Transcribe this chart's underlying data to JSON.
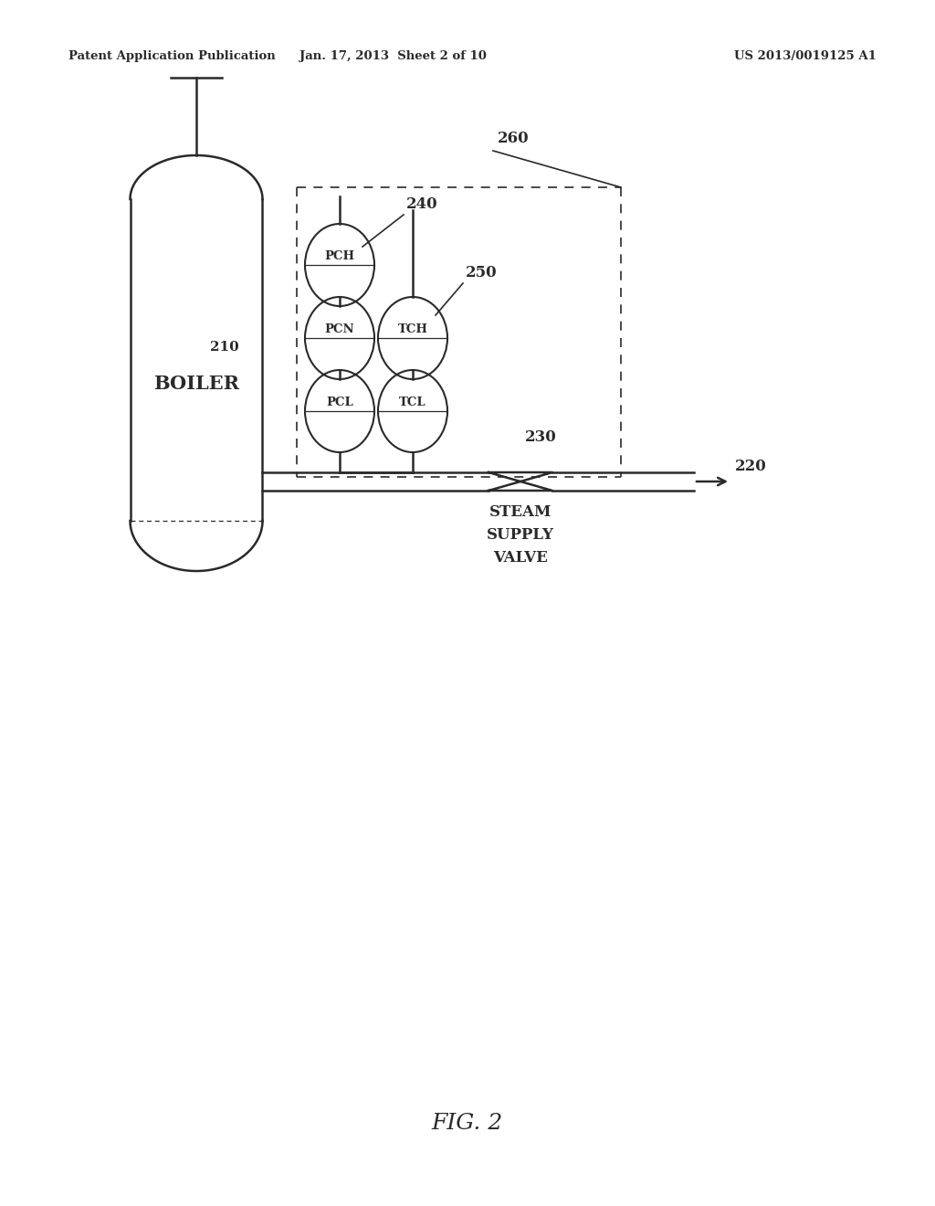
{
  "bg_color": "#ffffff",
  "line_color": "#2a2a2a",
  "header_left": "Patent Application Publication",
  "header_center": "Jan. 17, 2013  Sheet 2 of 10",
  "header_right": "US 2013/0019125 A1",
  "fig_label": "FIG. 2",
  "labels": {
    "boiler": "BOILER",
    "boiler_num": "210",
    "pch": "PCH",
    "pcn": "PCN",
    "pcl": "PCL",
    "tch": "TCH",
    "tcl": "TCL",
    "group240": "240",
    "group250": "250",
    "box260": "260",
    "valve_num": "230",
    "valve_label": "STEAM\nSUPPLY\nVALVE",
    "outlet_num": "220"
  }
}
